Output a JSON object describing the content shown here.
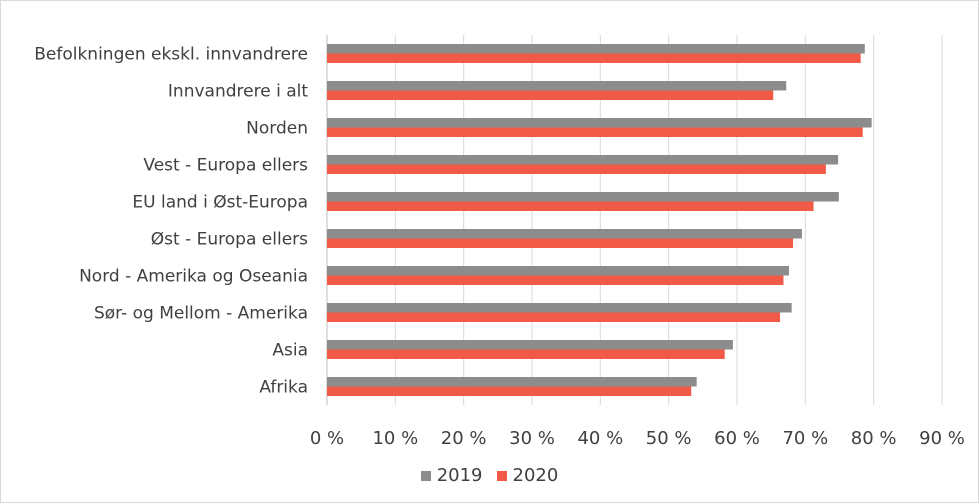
{
  "chart_data": {
    "type": "bar",
    "orientation": "horizontal",
    "title": "",
    "xlabel": "",
    "ylabel": "",
    "categories": [
      "Befolkningen ekskl. innvandrere",
      "Innvandrere i alt",
      "Norden",
      "Vest - Europa ellers",
      "EU land i Øst-Europa",
      "Øst - Europa ellers",
      "Nord - Amerika og Oseania",
      "Sør- og Mellom - Amerika",
      "Asia",
      "Afrika"
    ],
    "series": [
      {
        "name": "2019",
        "color": "#8c8c8c",
        "values": [
          78.7,
          67.2,
          79.7,
          74.8,
          74.9,
          69.5,
          67.6,
          68.0,
          59.4,
          54.1
        ]
      },
      {
        "name": "2020",
        "color": "#f05a46",
        "values": [
          78.1,
          65.3,
          78.4,
          73.0,
          71.2,
          68.2,
          66.8,
          66.3,
          58.2,
          53.3
        ]
      }
    ],
    "xlim": [
      0,
      90
    ],
    "x_ticks": [
      "0 %",
      "10 %",
      "20 %",
      "30 %",
      "40 %",
      "50 %",
      "60 %",
      "70 %",
      "80 %",
      "90 %"
    ],
    "grid": true,
    "legend_position": "bottom"
  }
}
